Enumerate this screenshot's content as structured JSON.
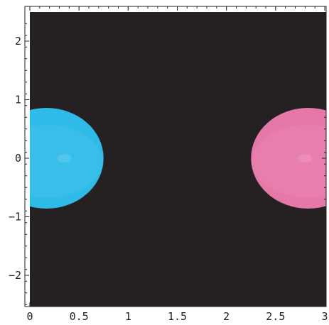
{
  "chart_data": {
    "type": "density-plot",
    "title": "",
    "xlabel": "",
    "ylabel": "",
    "xlim": [
      0,
      3
    ],
    "ylim": [
      -2.55,
      2.55
    ],
    "background_color": "#252122",
    "x_ticks": [
      {
        "value": 0,
        "label": "0"
      },
      {
        "value": 0.5,
        "label": "0.5"
      },
      {
        "value": 1,
        "label": "1"
      },
      {
        "value": 1.5,
        "label": "1.5"
      },
      {
        "value": 2,
        "label": "2"
      },
      {
        "value": 2.5,
        "label": "2.5"
      },
      {
        "value": 3,
        "label": "3"
      }
    ],
    "y_ticks": [
      {
        "value": 2,
        "label": "2"
      },
      {
        "value": 1,
        "label": "1"
      },
      {
        "value": 0,
        "label": "0"
      },
      {
        "value": -1,
        "label": "−1"
      },
      {
        "value": -2,
        "label": "−2"
      }
    ],
    "blobs": [
      {
        "name": "cyan",
        "cx": 0.17,
        "cy": 0,
        "rx": 0.58,
        "ry": 0.86,
        "color": "#2fbbe8",
        "highlight_x": 0.35
      },
      {
        "name": "pink",
        "cx": 2.83,
        "cy": 0,
        "rx": 0.58,
        "ry": 0.86,
        "color": "#e678a9",
        "highlight_x": 2.8
      }
    ]
  }
}
